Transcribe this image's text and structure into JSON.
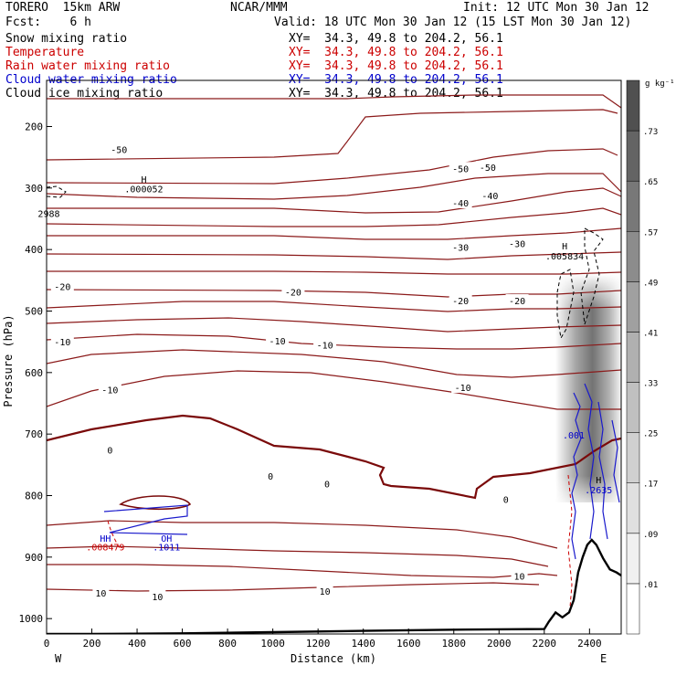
{
  "header": {
    "model": "TORERO  15km ARW",
    "center": "NCAR/MMM",
    "init": "Init: 12 UTC Mon 30 Jan 12",
    "fcst": "Fcst:    6 h",
    "valid": "Valid: 18 UTC Mon 30 Jan 12 (15 LST Mon 30 Jan 12)",
    "fields": [
      {
        "label": "Snow mixing ratio",
        "xy": "XY=  34.3, 49.8 to 204.2, 56.1",
        "color": "#000000"
      },
      {
        "label": "Temperature",
        "xy": "XY=  34.3, 49.8 to 204.2, 56.1",
        "color": "#cc0000"
      },
      {
        "label": "Rain water mixing ratio",
        "xy": "XY=  34.3, 49.8 to 204.2, 56.1",
        "color": "#cc0000"
      },
      {
        "label": "Cloud water mixing ratio",
        "xy": "XY=  34.3, 49.8 to 204.2, 56.1",
        "color": "#0000cc"
      },
      {
        "label": "Cloud ice mixing ratio",
        "xy": "XY=  34.3, 49.8 to 204.2, 56.1",
        "color": "#000000"
      }
    ]
  },
  "chart_data": {
    "type": "contour",
    "xlabel": "Distance (km)",
    "ylabel": "Pressure (hPa)",
    "xlim": [
      0,
      2540
    ],
    "ylim": [
      1025,
      125
    ],
    "x_ticks": [
      0,
      200,
      400,
      600,
      800,
      1000,
      1200,
      1400,
      1600,
      1800,
      2000,
      2200,
      2400
    ],
    "y_ticks": [
      200,
      300,
      400,
      500,
      600,
      700,
      800,
      900,
      1000
    ],
    "x_end_labels": {
      "left": "W",
      "right": "E"
    },
    "colorbar": {
      "unit": "g kg⁻¹",
      "ticks": [
        ".01",
        ".09",
        ".17",
        ".25",
        ".33",
        ".41",
        ".49",
        ".57",
        ".65",
        ".73"
      ],
      "colors": [
        "#ffffff",
        "#f0f0f0",
        "#e0e0e0",
        "#d0d0d0",
        "#c0c0c0",
        "#b0b0b0",
        "#a0a0a0",
        "#8c8c8c",
        "#787878",
        "#646464",
        "#505050"
      ]
    },
    "temperature_labels": [
      {
        "x": 320,
        "p": 237,
        "text": "-50"
      },
      {
        "x": 1830,
        "p": 268,
        "text": "-50"
      },
      {
        "x": 1950,
        "p": 266,
        "text": "-50"
      },
      {
        "x": 1830,
        "p": 324,
        "text": "-40"
      },
      {
        "x": 1960,
        "p": 312,
        "text": "-40"
      },
      {
        "x": 1830,
        "p": 396,
        "text": "-30"
      },
      {
        "x": 2080,
        "p": 390,
        "text": "-30"
      },
      {
        "x": 70,
        "p": 460,
        "text": "-20"
      },
      {
        "x": 1090,
        "p": 469,
        "text": "-20"
      },
      {
        "x": 1830,
        "p": 483,
        "text": "-20"
      },
      {
        "x": 2080,
        "p": 483,
        "text": "-20"
      },
      {
        "x": 70,
        "p": 550,
        "text": "-10"
      },
      {
        "x": 1020,
        "p": 548,
        "text": "-10"
      },
      {
        "x": 1230,
        "p": 555,
        "text": "-10"
      },
      {
        "x": 1840,
        "p": 624,
        "text": "-10"
      },
      {
        "x": 280,
        "p": 628,
        "text": "-10"
      },
      {
        "x": 280,
        "p": 726,
        "text": "0"
      },
      {
        "x": 990,
        "p": 768,
        "text": "0"
      },
      {
        "x": 1240,
        "p": 781,
        "text": "0"
      },
      {
        "x": 2030,
        "p": 806,
        "text": "0"
      },
      {
        "x": 240,
        "p": 958,
        "text": "10"
      },
      {
        "x": 490,
        "p": 964,
        "text": "10"
      },
      {
        "x": 1230,
        "p": 955,
        "text": "10"
      },
      {
        "x": 2090,
        "p": 931,
        "text": "10"
      }
    ],
    "extrema_labels": [
      {
        "x": 430,
        "p": 291,
        "text": "H",
        "color": "#000000"
      },
      {
        "x": 430,
        "p": 307,
        "text": ".000052",
        "color": "#000000"
      },
      {
        "x": 10,
        "p": 347,
        "text": "2988",
        "color": "#000000"
      },
      {
        "x": 2290,
        "p": 400,
        "text": "H",
        "color": "#000000"
      },
      {
        "x": 2290,
        "p": 416,
        "text": ".005834",
        "color": "#000000"
      },
      {
        "x": 2330,
        "p": 707,
        "text": ".001",
        "color": "#0000cc"
      },
      {
        "x": 2440,
        "p": 780,
        "text": "H",
        "color": "#000000"
      },
      {
        "x": 2440,
        "p": 796,
        "text": ".2635",
        "color": "#0000cc"
      },
      {
        "x": 260,
        "p": 875,
        "text": "HH",
        "color": "#0000cc"
      },
      {
        "x": 260,
        "p": 889,
        "text": ".008479",
        "color": "#cc0000"
      },
      {
        "x": 530,
        "p": 875,
        "text": "OH",
        "color": "#0000cc"
      },
      {
        "x": 530,
        "p": 889,
        "text": ".1011",
        "color": "#0000cc"
      }
    ],
    "terrain": [
      [
        0,
        1025
      ],
      [
        200,
        1025
      ],
      [
        600,
        1024
      ],
      [
        1000,
        1022
      ],
      [
        1400,
        1020
      ],
      [
        1800,
        1018
      ],
      [
        2200,
        1017
      ],
      [
        2220,
        1005
      ],
      [
        2250,
        990
      ],
      [
        2280,
        998
      ],
      [
        2310,
        990
      ],
      [
        2330,
        970
      ],
      [
        2350,
        925
      ],
      [
        2370,
        900
      ],
      [
        2390,
        880
      ],
      [
        2410,
        872
      ],
      [
        2430,
        880
      ],
      [
        2460,
        902
      ],
      [
        2490,
        920
      ],
      [
        2520,
        925
      ],
      [
        2540,
        930
      ]
    ]
  }
}
